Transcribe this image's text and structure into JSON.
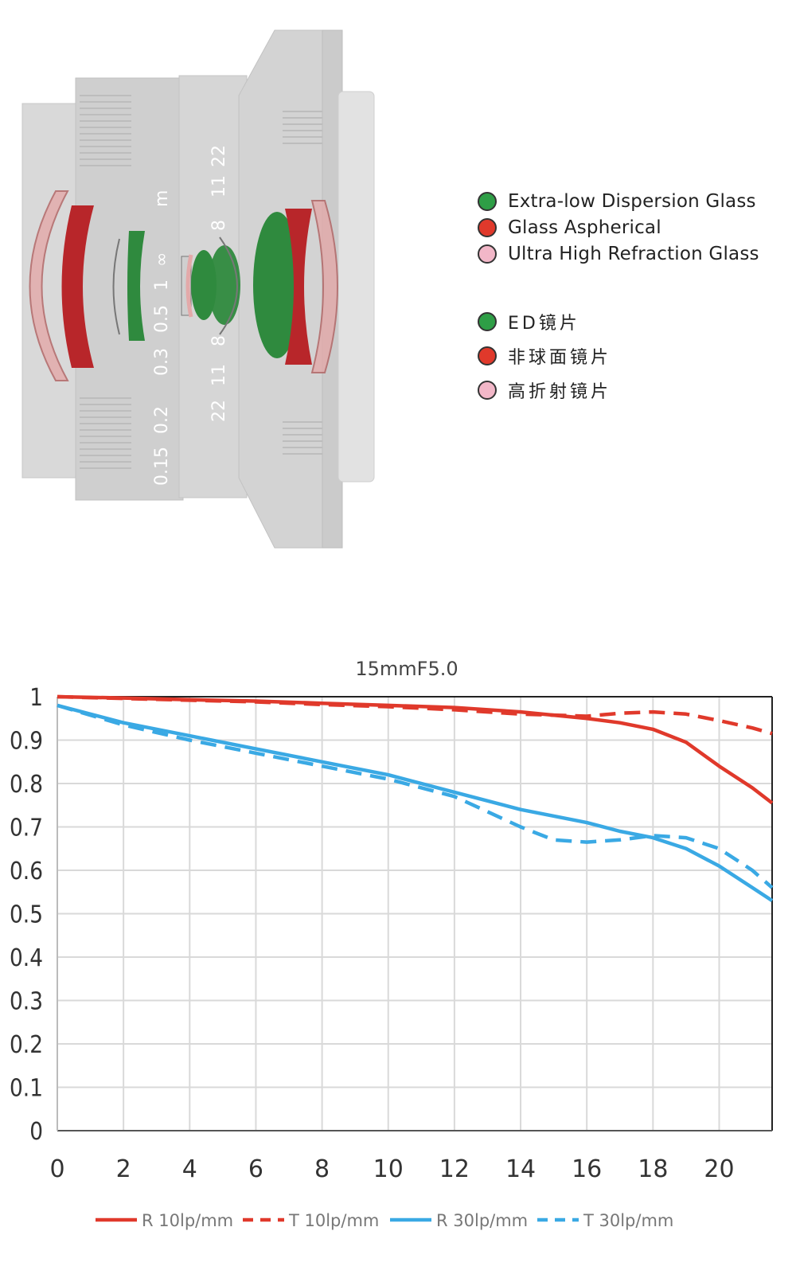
{
  "colors": {
    "green": "#2e9e46",
    "red": "#e0392b",
    "pink": "#f2b7c8",
    "lens_body": "#d4d4d4",
    "lens_body_dark": "#b9b9b9",
    "element_red": "#b8262a",
    "element_green": "#2f8a3e",
    "series_red": "#e0392b",
    "series_blue": "#3aa9e4",
    "grid": "#d9d9d9"
  },
  "diagram": {
    "barrel_markings": [
      "m",
      "∞",
      "1",
      "0.5",
      "0.3",
      "0.2",
      "0.15",
      "22",
      "11",
      "8",
      "8",
      "11",
      "22"
    ]
  },
  "legend_en": [
    {
      "label": "Extra-low Dispersion Glass",
      "color": "#2e9e46"
    },
    {
      "label": "Glass Aspherical",
      "color": "#e0392b"
    },
    {
      "label": "Ultra High Refraction Glass",
      "color": "#f2b7c8"
    }
  ],
  "legend_cn": [
    {
      "label": "ED镜片",
      "color": "#2e9e46"
    },
    {
      "label": "非球面镜片",
      "color": "#e0392b"
    },
    {
      "label": "高折射镜片",
      "color": "#f2b7c8"
    }
  ],
  "chart_data": {
    "type": "line",
    "title": "15mmF5.0",
    "xlabel": "",
    "ylabel": "",
    "xlim": [
      0,
      21.6
    ],
    "ylim": [
      0,
      1
    ],
    "x_ticks": [
      0,
      2,
      4,
      6,
      8,
      10,
      12,
      14,
      16,
      18,
      20
    ],
    "y_ticks": [
      0,
      0.1,
      0.2,
      0.3,
      0.4,
      0.5,
      0.6,
      0.7,
      0.8,
      0.9,
      1
    ],
    "y_tick_labels": [
      "0",
      "0.1",
      "0.2",
      "0.3",
      "0.4",
      "0.5",
      "0.6",
      "0.7",
      "0.8",
      "0.9",
      "1"
    ],
    "grid": true,
    "legend_position": "bottom",
    "series": [
      {
        "name": "R 10lp/mm",
        "color": "#e0392b",
        "dash": false,
        "x": [
          0,
          2,
          4,
          6,
          8,
          10,
          12,
          14,
          16,
          17,
          18,
          19,
          20,
          21,
          21.6
        ],
        "y": [
          1.0,
          0.997,
          0.993,
          0.99,
          0.985,
          0.98,
          0.975,
          0.965,
          0.95,
          0.94,
          0.925,
          0.895,
          0.84,
          0.79,
          0.755
        ]
      },
      {
        "name": "T 10lp/mm",
        "color": "#e0392b",
        "dash": true,
        "x": [
          0,
          2,
          4,
          6,
          8,
          10,
          12,
          14,
          16,
          17,
          18,
          19,
          20,
          21,
          21.6
        ],
        "y": [
          1.0,
          0.996,
          0.992,
          0.988,
          0.982,
          0.977,
          0.97,
          0.96,
          0.955,
          0.962,
          0.965,
          0.96,
          0.945,
          0.928,
          0.915
        ]
      },
      {
        "name": "R 30lp/mm",
        "color": "#3aa9e4",
        "dash": false,
        "x": [
          0,
          2,
          4,
          6,
          8,
          10,
          12,
          14,
          16,
          17,
          18,
          19,
          20,
          21,
          21.6
        ],
        "y": [
          0.98,
          0.94,
          0.91,
          0.88,
          0.85,
          0.82,
          0.78,
          0.74,
          0.71,
          0.69,
          0.675,
          0.65,
          0.61,
          0.56,
          0.53
        ]
      },
      {
        "name": "T 30lp/mm",
        "color": "#3aa9e4",
        "dash": true,
        "x": [
          0,
          2,
          4,
          6,
          8,
          10,
          12,
          14,
          15,
          16,
          17,
          18,
          19,
          20,
          21,
          21.6
        ],
        "y": [
          0.98,
          0.935,
          0.9,
          0.87,
          0.84,
          0.81,
          0.77,
          0.7,
          0.67,
          0.665,
          0.67,
          0.68,
          0.675,
          0.65,
          0.6,
          0.56
        ]
      }
    ]
  }
}
